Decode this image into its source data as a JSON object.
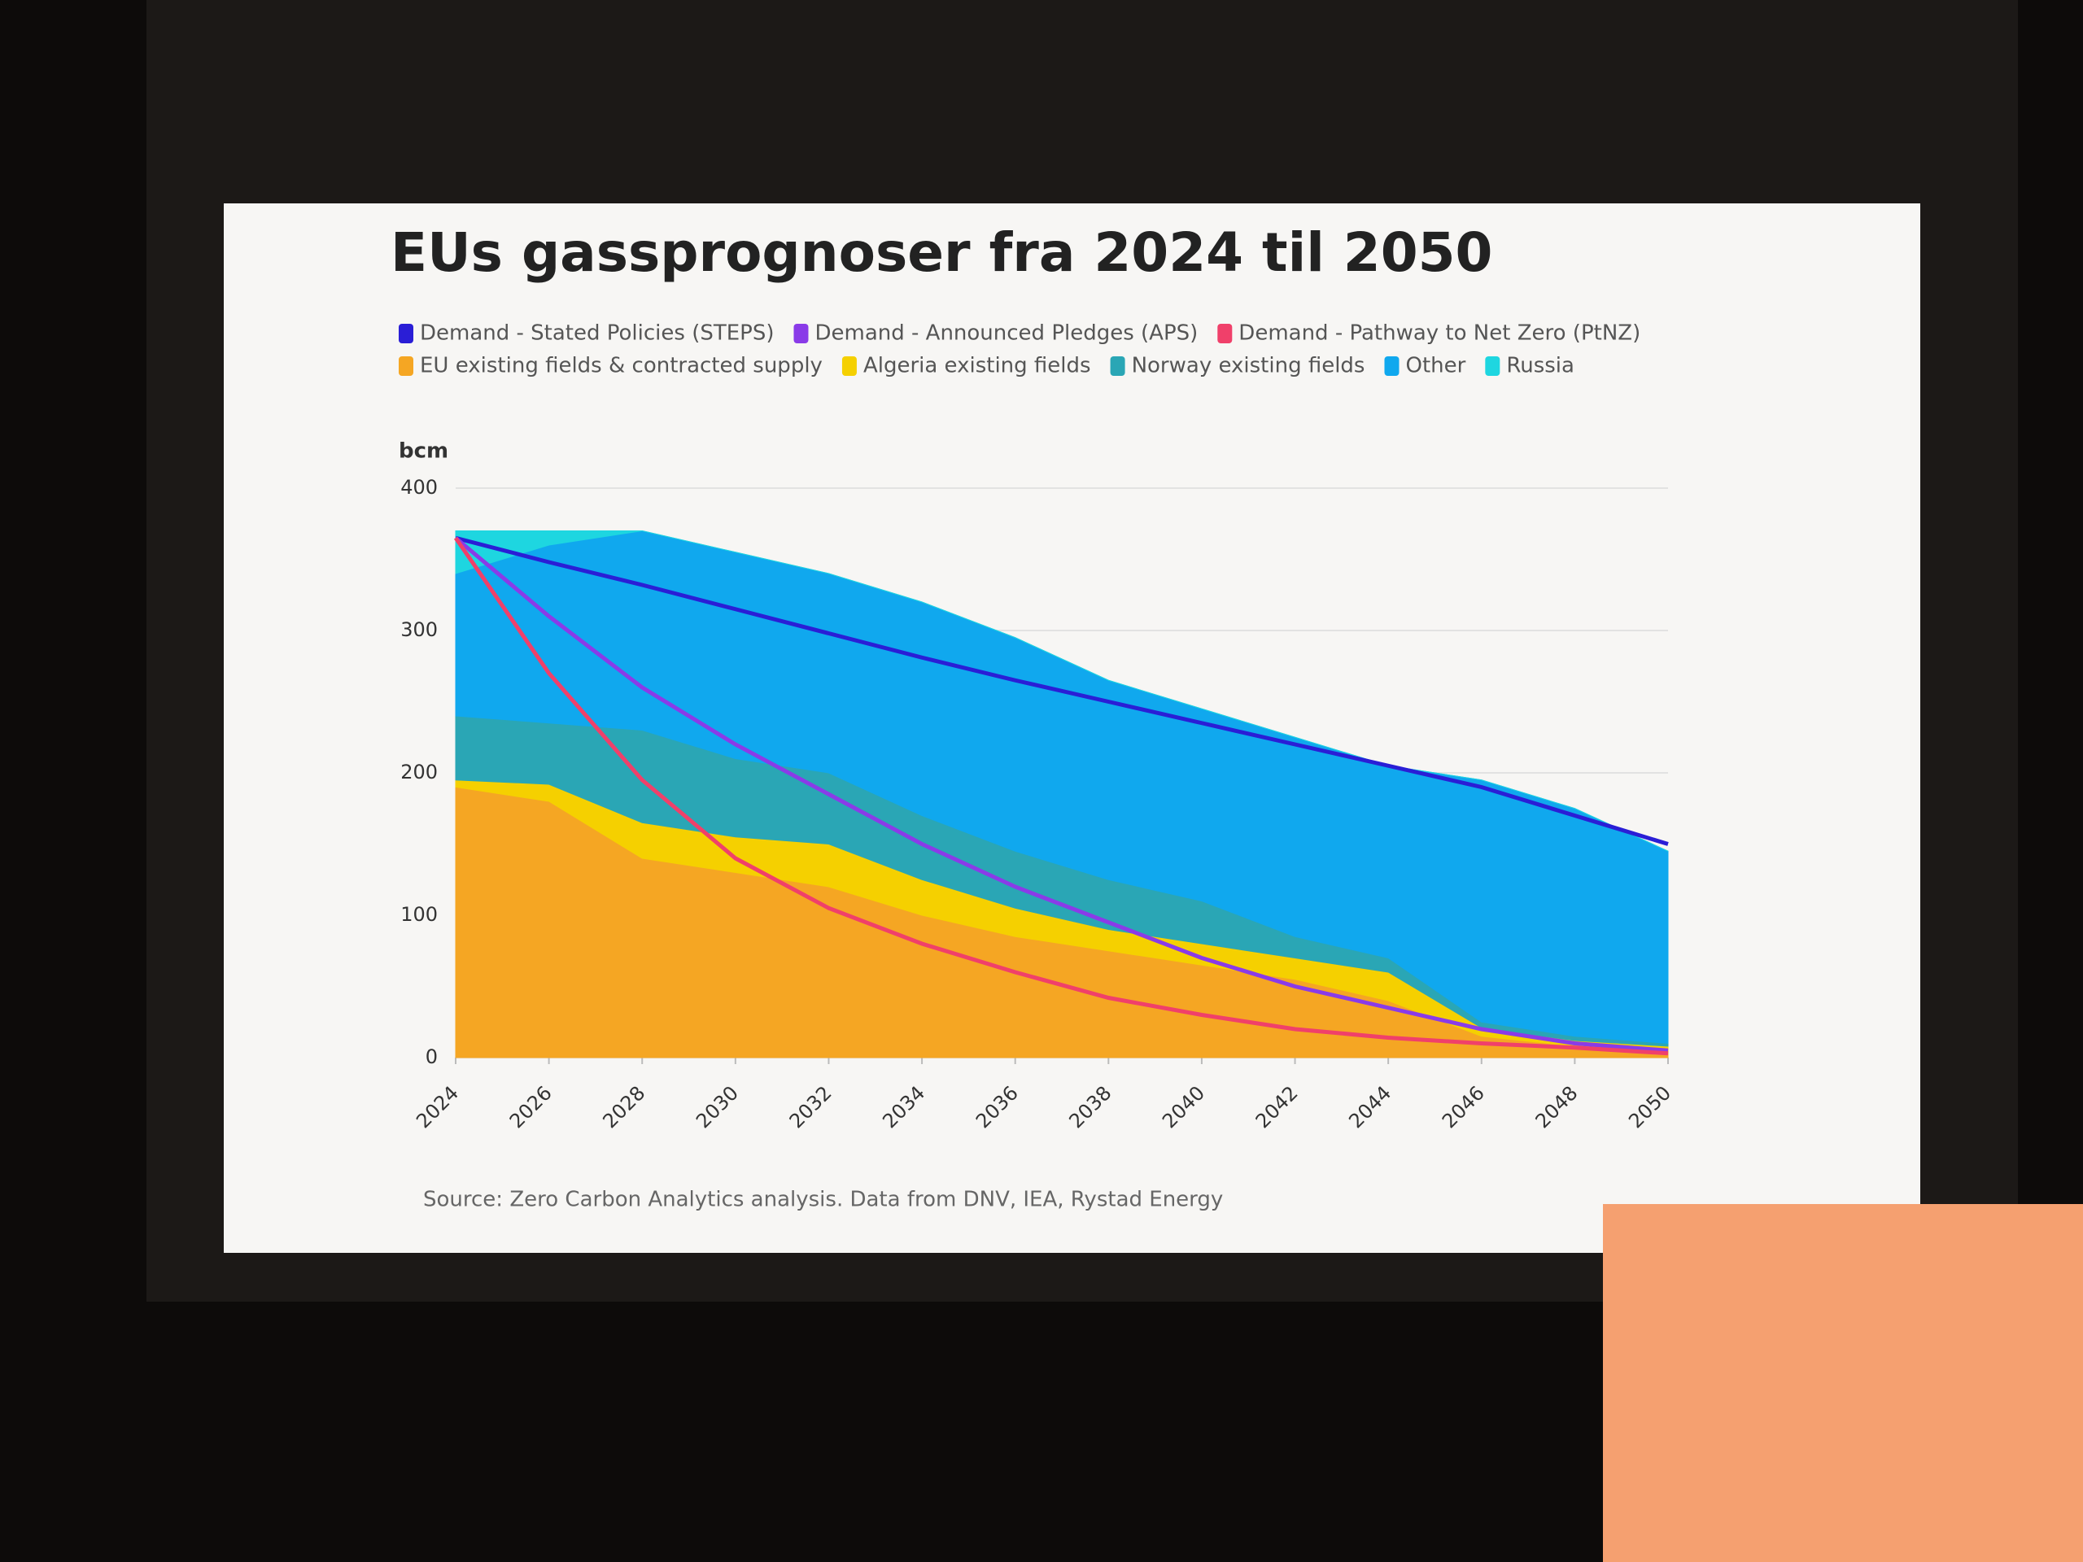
{
  "chart_data": {
    "type": "area",
    "title": "EUs gassprognoser fra 2024 til 2050",
    "y_label": "bcm",
    "source": "Source: Zero Carbon Analytics analysis. Data from DNV, IEA, Rystad Energy",
    "x": [
      2024,
      2026,
      2028,
      2030,
      2032,
      2034,
      2036,
      2038,
      2040,
      2042,
      2044,
      2046,
      2048,
      2050
    ],
    "xlim": [
      2024,
      2050
    ],
    "xticks": [
      2024,
      2026,
      2028,
      2030,
      2032,
      2034,
      2036,
      2038,
      2040,
      2042,
      2044,
      2046,
      2048,
      2050
    ],
    "ylim": [
      0,
      400
    ],
    "yticks": [
      0,
      100,
      200,
      300,
      400
    ],
    "grid": true,
    "series": [
      {
        "name": "Demand - Stated Policies (STEPS)",
        "type": "line",
        "color": "#2a1ed6",
        "values": [
          365,
          348,
          332,
          315,
          298,
          281,
          265,
          250,
          235,
          220,
          205,
          190,
          170,
          150
        ]
      },
      {
        "name": "Demand - Announced Pledges (APS)",
        "type": "line",
        "color": "#8a3be8",
        "values": [
          365,
          310,
          260,
          220,
          185,
          150,
          120,
          95,
          70,
          50,
          35,
          20,
          10,
          5
        ]
      },
      {
        "name": "Demand - Pathway to Net Zero (PtNZ)",
        "type": "line",
        "color": "#f0406a",
        "values": [
          365,
          270,
          195,
          140,
          105,
          80,
          60,
          42,
          30,
          20,
          14,
          10,
          7,
          3
        ]
      },
      {
        "name": "EU existing fields & contracted supply",
        "type": "area",
        "color": "#f5a623",
        "values": [
          190,
          180,
          140,
          130,
          120,
          100,
          85,
          75,
          65,
          55,
          40,
          15,
          8,
          5
        ]
      },
      {
        "name": "Algeria existing fields",
        "type": "area",
        "color": "#f5d000",
        "values": [
          5,
          12,
          25,
          25,
          30,
          25,
          20,
          15,
          15,
          15,
          20,
          6,
          4,
          3
        ]
      },
      {
        "name": "Norway existing fields",
        "type": "area",
        "color": "#2aa6b5",
        "values": [
          45,
          43,
          65,
          55,
          50,
          45,
          40,
          35,
          30,
          15,
          10,
          4,
          3,
          2
        ]
      },
      {
        "name": "Other",
        "type": "area",
        "color": "#10a8ee",
        "values": [
          100,
          125,
          140,
          145,
          140,
          150,
          150,
          140,
          135,
          140,
          135,
          170,
          160,
          135
        ]
      },
      {
        "name": "Russia",
        "type": "area",
        "color": "#1ed6e0",
        "values": [
          30,
          10,
          0,
          0,
          0,
          0,
          0,
          0,
          0,
          0,
          0,
          0,
          0,
          0
        ]
      }
    ]
  }
}
